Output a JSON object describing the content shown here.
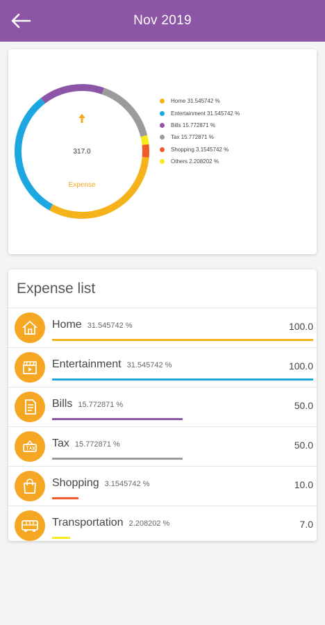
{
  "appbar": {
    "title": "Nov 2019",
    "back_icon": "arrow-back-icon"
  },
  "summary": {
    "total": "317.0",
    "label": "Expense",
    "arrow_icon": "arrow-up-icon"
  },
  "chart_data": {
    "type": "pie",
    "style": "donut",
    "categories": [
      "Home",
      "Entertainment",
      "Bills",
      "Tax",
      "Shopping",
      "Others"
    ],
    "values": [
      31.545742,
      31.545742,
      15.772871,
      15.772871,
      3.1545742,
      2.208202
    ],
    "colors": [
      "#f5b21b",
      "#1ca7e1",
      "#8d55a5",
      "#9b9b9b",
      "#ef5a28",
      "#f7ea1b"
    ],
    "legend": [
      {
        "label": "Home 31.545742 %",
        "color": "#f5b21b"
      },
      {
        "label": "Entertainment 31.545742 %",
        "color": "#1ca7e1"
      },
      {
        "label": "Bills 15.772871 %",
        "color": "#8d55a5"
      },
      {
        "label": "Tax 15.772871 %",
        "color": "#9b9b9b"
      },
      {
        "label": "Shopping 3.1545742 %",
        "color": "#ef5a28"
      },
      {
        "label": "Others 2.208202 %",
        "color": "#f7ea1b"
      }
    ],
    "legend_position": "right"
  },
  "expense_list": {
    "title": "Expense list",
    "items": [
      {
        "name": "Home",
        "percent": "31.545742 %",
        "amount": "100.0",
        "fraction": 1.0,
        "color": "#f5b21b",
        "icon": "home-icon"
      },
      {
        "name": "Entertainment",
        "percent": "31.545742 %",
        "amount": "100.0",
        "fraction": 1.0,
        "color": "#1ca7e1",
        "icon": "clapperboard-icon"
      },
      {
        "name": "Bills",
        "percent": "15.772871 %",
        "amount": "50.0",
        "fraction": 0.5,
        "color": "#8d55a5",
        "icon": "document-icon"
      },
      {
        "name": "Tax",
        "percent": "15.772871 %",
        "amount": "50.0",
        "fraction": 0.5,
        "color": "#9b9b9b",
        "icon": "tax-sign-icon"
      },
      {
        "name": "Shopping",
        "percent": "3.1545742 %",
        "amount": "10.0",
        "fraction": 0.1,
        "color": "#ef5a28",
        "icon": "shopping-bag-icon"
      },
      {
        "name": "Transportation",
        "percent": "2.208202 %",
        "amount": "7.0",
        "fraction": 0.07,
        "color": "#f7ea1b",
        "icon": "bus-icon"
      }
    ]
  }
}
